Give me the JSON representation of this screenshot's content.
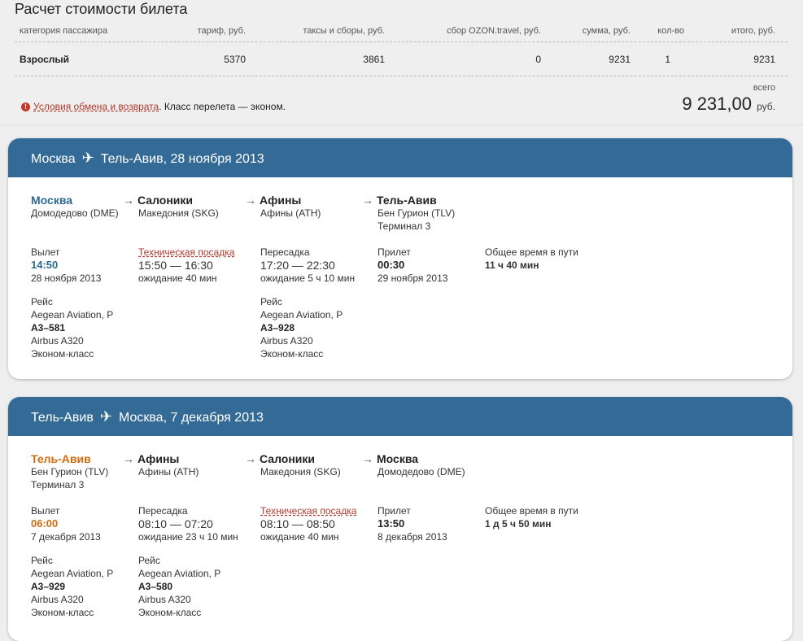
{
  "page": {
    "title": "Расчет стоимости билета"
  },
  "price_table": {
    "headers": [
      "категория пассажира",
      "тариф, руб.",
      "таксы и сборы, руб.",
      "сбор OZON.travel, руб.",
      "сумма, руб.",
      "кол-во",
      "итого, руб."
    ],
    "row": [
      "Взрослый",
      "5370",
      "3861",
      "0",
      "9231",
      "1",
      "9231"
    ]
  },
  "info": {
    "link": "Условия обмена и возврата",
    "text": ". Класс перелета — эконом."
  },
  "total": {
    "label": "всего",
    "value": "9 231,00",
    "currency": "руб."
  },
  "flights": [
    {
      "from": "Москва",
      "to": "Тель-Авив, 28 ноября 2013",
      "points": [
        {
          "city": "Москва",
          "airport": "Домодедово (DME)",
          "terminal": ""
        },
        {
          "city": "Салоники",
          "airport": "Македония (SKG)",
          "terminal": ""
        },
        {
          "city": "Афины",
          "airport": "Афины (ATH)",
          "terminal": ""
        },
        {
          "city": "Тель-Авив",
          "airport": "Бен Гурион (TLV)",
          "terminal": "Терминал 3"
        }
      ],
      "departure": {
        "label": "Вылет",
        "time": "14:50",
        "date": "28 ноября 2013"
      },
      "stop1": {
        "label": "Техническая посадка",
        "time": "15:50 — 16:30",
        "wait": "ожидание 40 мин"
      },
      "stop2": {
        "label": "Пересадка",
        "time": "17:20 — 22:30",
        "wait": "ожидание 5 ч 10 мин"
      },
      "arrival": {
        "label": "Прилет",
        "time": "00:30",
        "date": "29 ноября 2013"
      },
      "duration": {
        "label": "Общее время в пути",
        "value": "11 ч 40 мин"
      },
      "legs": [
        {
          "label": "Рейс",
          "airline": "Aegean Aviation, P",
          "number": "A3–581",
          "aircraft": "Airbus A320",
          "class": "Эконом-класс"
        },
        {
          "label": "Рейс",
          "airline": "Aegean Aviation, P",
          "number": "A3–928",
          "aircraft": "Airbus A320",
          "class": "Эконом-класс"
        }
      ]
    },
    {
      "from": "Тель-Авив",
      "to": "Москва, 7 декабря 2013",
      "points": [
        {
          "city": "Тель-Авив",
          "airport": "Бен Гурион (TLV)",
          "terminal": "Терминал 3"
        },
        {
          "city": "Афины",
          "airport": "Афины (ATH)",
          "terminal": ""
        },
        {
          "city": "Салоники",
          "airport": "Македония (SKG)",
          "terminal": ""
        },
        {
          "city": "Москва",
          "airport": "Домодедово (DME)",
          "terminal": ""
        }
      ],
      "departure": {
        "label": "Вылет",
        "time": "06:00",
        "date": "7 декабря 2013"
      },
      "stop1": {
        "label": "Пересадка",
        "time": "08:10 — 07:20",
        "wait": "ожидание 23 ч 10 мин"
      },
      "stop2": {
        "label": "Техническая посадка",
        "time": "08:10 — 08:50",
        "wait": "ожидание 40 мин"
      },
      "arrival": {
        "label": "Прилет",
        "time": "13:50",
        "date": "8 декабря 2013"
      },
      "duration": {
        "label": "Общее время в пути",
        "value": "1 д 5 ч 50 мин"
      },
      "legs": [
        {
          "label": "Рейс",
          "airline": "Aegean Aviation, P",
          "number": "A3–929",
          "aircraft": "Airbus A320",
          "class": "Эконом-класс"
        },
        {
          "label": "Рейс",
          "airline": "Aegean Aviation, P",
          "number": "A3–580",
          "aircraft": "Airbus A320",
          "class": "Эконом-класс"
        }
      ]
    }
  ]
}
